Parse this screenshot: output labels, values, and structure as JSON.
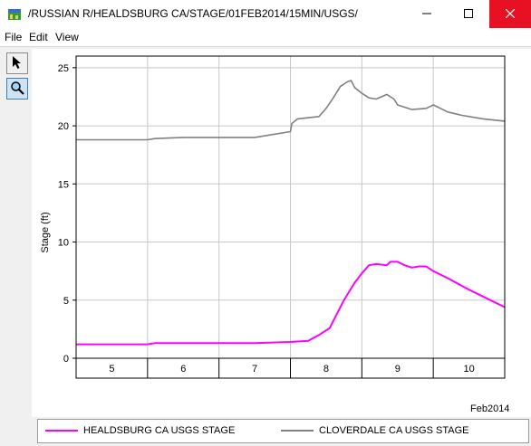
{
  "window": {
    "title": "/RUSSIAN R/HEALDSBURG CA/STAGE/01FEB2014/15MIN/USGS/"
  },
  "menu": {
    "file": "File",
    "edit": "Edit",
    "view": "View"
  },
  "toolbar": {
    "tools": [
      {
        "icon": "pointer-arrow-icon"
      },
      {
        "icon": "zoom-magnifier-icon",
        "active": true
      }
    ]
  },
  "chart_data": {
    "type": "line",
    "title": "",
    "xlabel": "",
    "ylabel": "Stage (ft)",
    "x_unit_label": "Feb2014",
    "x_categories": [
      "5",
      "6",
      "7",
      "8",
      "9",
      "10"
    ],
    "xlim": [
      4.5,
      10.5
    ],
    "ylim": [
      0,
      26
    ],
    "yticks": [
      0,
      5,
      10,
      15,
      20,
      25
    ],
    "grid": true,
    "legend_position": "bottom",
    "series": [
      {
        "name": "HEALDSBURG CA USGS STAGE",
        "color": "#ff00ff",
        "x": [
          4.5,
          5.5,
          5.6,
          7.0,
          7.5,
          7.75,
          7.9,
          8.05,
          8.15,
          8.25,
          8.4,
          8.5,
          8.6,
          8.7,
          8.85,
          8.9,
          9.0,
          9.1,
          9.2,
          9.3,
          9.4,
          9.5,
          9.7,
          10.0,
          10.3,
          10.5
        ],
        "y": [
          1.2,
          1.2,
          1.3,
          1.3,
          1.4,
          1.5,
          2.0,
          2.6,
          3.8,
          5.0,
          6.5,
          7.3,
          8.0,
          8.1,
          8.0,
          8.3,
          8.3,
          8.0,
          7.8,
          7.9,
          7.9,
          7.5,
          6.9,
          5.9,
          5.0,
          4.4
        ]
      },
      {
        "name": "CLOVERDALE CA USGS STAGE",
        "color": "#808080",
        "x": [
          4.5,
          5.5,
          5.6,
          6.0,
          7.0,
          7.5,
          7.52,
          7.6,
          7.9,
          8.0,
          8.1,
          8.2,
          8.3,
          8.35,
          8.4,
          8.5,
          8.6,
          8.7,
          8.85,
          8.95,
          9.0,
          9.1,
          9.2,
          9.4,
          9.5,
          9.6,
          9.7,
          9.9,
          10.2,
          10.5
        ],
        "y": [
          18.8,
          18.8,
          18.9,
          19.0,
          19.0,
          19.5,
          20.2,
          20.6,
          20.8,
          21.5,
          22.4,
          23.4,
          23.8,
          23.9,
          23.3,
          22.8,
          22.4,
          22.3,
          22.7,
          22.3,
          21.8,
          21.6,
          21.4,
          21.5,
          21.8,
          21.5,
          21.2,
          20.9,
          20.6,
          20.4
        ]
      }
    ]
  }
}
